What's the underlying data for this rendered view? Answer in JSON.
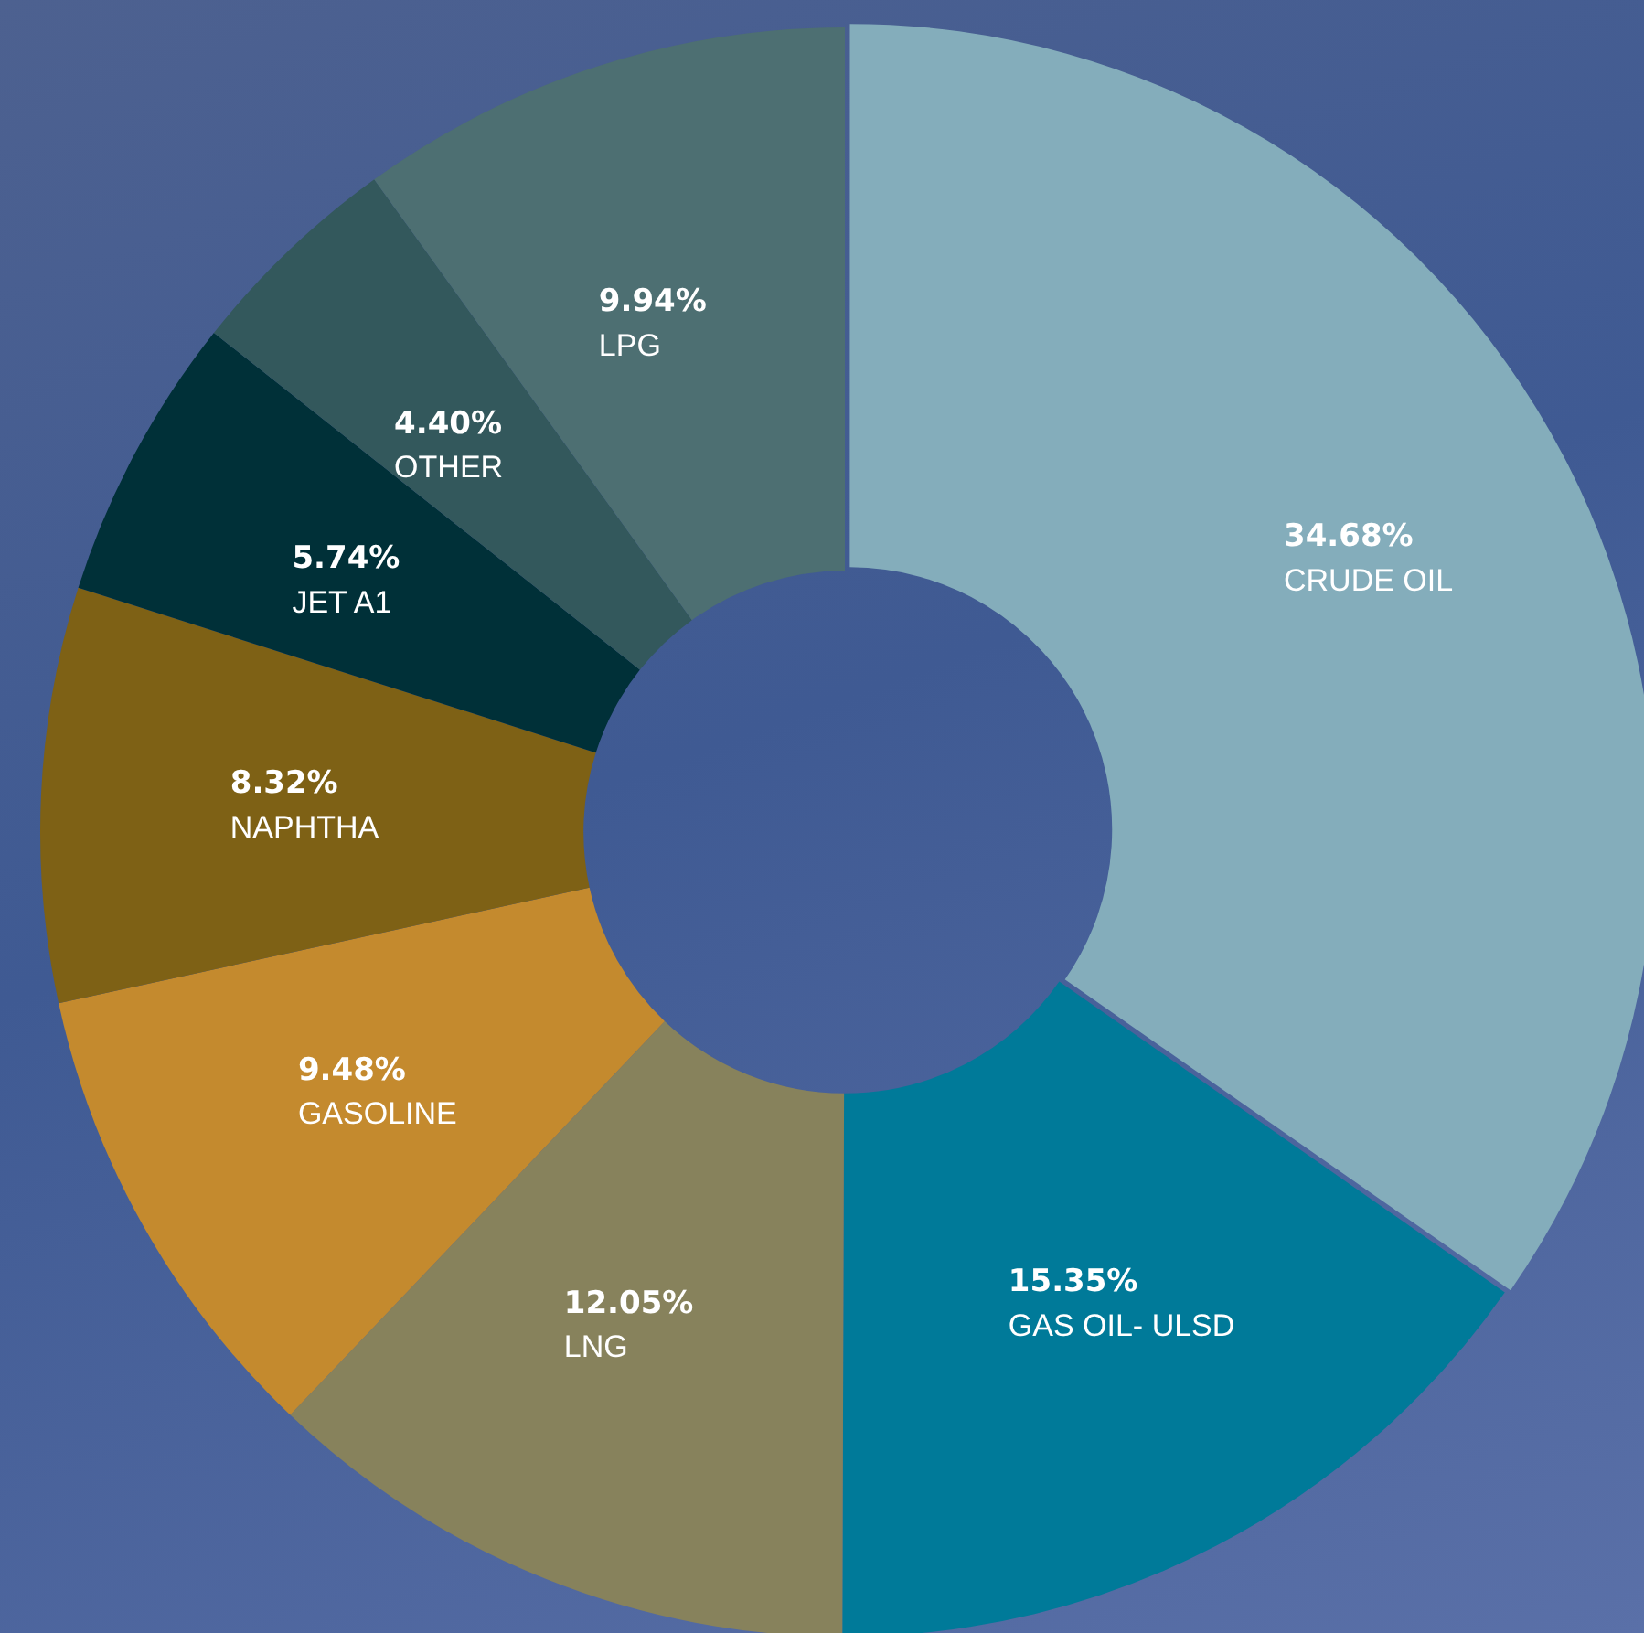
{
  "chart_data": {
    "type": "donut",
    "categories": [
      "CRUDE OIL",
      "GAS OIL- ULSD",
      "LNG",
      "GASOLINE",
      "NAPHTHA",
      "JET A1",
      "OTHER",
      "LPG"
    ],
    "values": [
      34.68,
      15.35,
      12.05,
      9.48,
      8.32,
      5.74,
      4.4,
      9.94
    ],
    "value_labels": [
      "34.68%",
      "15.35%",
      "12.05%",
      "9.48%",
      "8.32%",
      "5.74%",
      "4.40%",
      "9.94%"
    ],
    "colors": [
      "#84adbb",
      "#007a99",
      "#87825c",
      "#c48a2e",
      "#7e6115",
      "#003038",
      "#33585c",
      "#4d6f72"
    ],
    "legend": false
  }
}
